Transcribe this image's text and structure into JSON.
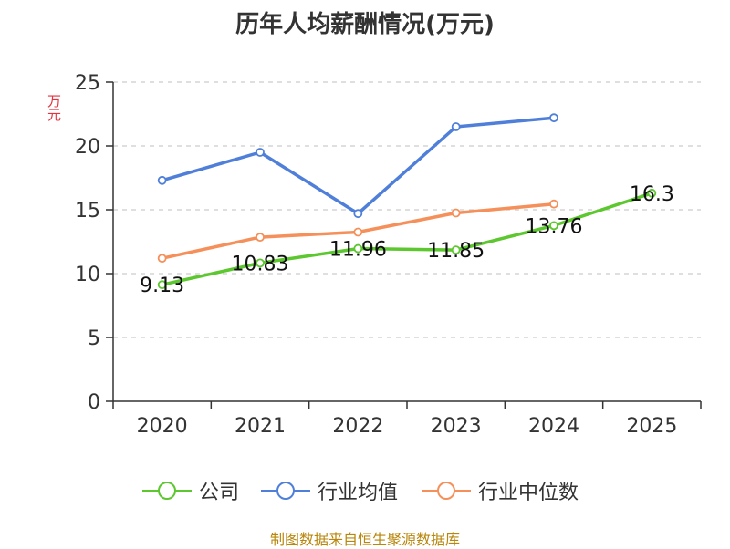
{
  "chart_data": {
    "type": "line",
    "title": "历年人均薪酬情况(万元)",
    "ylabel": "万元",
    "xlabel": "",
    "categories": [
      "2020",
      "2021",
      "2022",
      "2023",
      "2024",
      "2025"
    ],
    "ylim": [
      0,
      25
    ],
    "yticks": [
      0,
      5,
      10,
      15,
      20,
      25
    ],
    "grid": true,
    "legend_position": "bottom",
    "series": [
      {
        "name": "公司",
        "color": "#5cc72e",
        "values": [
          9.13,
          10.83,
          11.96,
          11.85,
          13.76,
          16.3
        ],
        "labels": [
          "9.13",
          "10.83",
          "11.96",
          "11.85",
          "13.76",
          "16.3"
        ]
      },
      {
        "name": "行业均值",
        "color": "#4f7fd9",
        "values": [
          17.3,
          19.5,
          14.7,
          21.5,
          22.2,
          null
        ]
      },
      {
        "name": "行业中位数",
        "color": "#f5905a",
        "values": [
          11.2,
          12.85,
          13.25,
          14.75,
          15.45,
          null
        ]
      }
    ]
  },
  "source": "制图数据来自恒生聚源数据库"
}
